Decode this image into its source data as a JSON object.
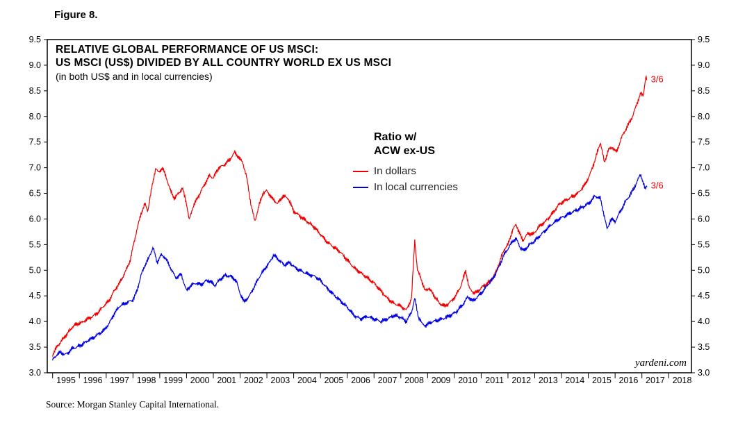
{
  "figure_label": "Figure 8.",
  "source_note": "Source: Morgan Stanley Capital International.",
  "watermark": "yardeni.com",
  "chart_data": {
    "type": "line",
    "title_line1": "RELATIVE GLOBAL PERFORMANCE OF US MSCI:",
    "title_line2": "US MSCI (US$) DIVIDED BY ALL COUNTRY WORLD EX US MSCI",
    "subtitle": "(in both US$ and in local currencies)",
    "legend_title_line1": "Ratio w/",
    "legend_title_line2": "ACW ex-US",
    "last_point_label": "3/6",
    "x_range": [
      1994.8,
      2018.85
    ],
    "y_range": [
      3.0,
      9.5
    ],
    "y_ticks": [
      3.0,
      3.5,
      4.0,
      4.5,
      5.0,
      5.5,
      6.0,
      6.5,
      7.0,
      7.5,
      8.0,
      8.5,
      9.0,
      9.5
    ],
    "x_tick_years": [
      1995,
      1996,
      1997,
      1998,
      1999,
      2000,
      2001,
      2002,
      2003,
      2004,
      2005,
      2006,
      2007,
      2008,
      2009,
      2010,
      2011,
      2012,
      2013,
      2014,
      2015,
      2016,
      2017,
      2018
    ],
    "grid": false,
    "legend_position": "inside-center",
    "jitter": 0.05,
    "colors": {
      "dollars": "#ee0000",
      "local": "#0000dd",
      "frame": "#000000",
      "annotation": "#ee0000"
    },
    "series": [
      {
        "name": "In dollars",
        "color_key": "dollars",
        "points": [
          [
            1995.0,
            3.35
          ],
          [
            1995.15,
            3.5
          ],
          [
            1995.3,
            3.6
          ],
          [
            1995.45,
            3.7
          ],
          [
            1995.6,
            3.8
          ],
          [
            1995.75,
            3.9
          ],
          [
            1995.9,
            3.95
          ],
          [
            1996.1,
            3.98
          ],
          [
            1996.3,
            4.05
          ],
          [
            1996.5,
            4.1
          ],
          [
            1996.7,
            4.18
          ],
          [
            1996.9,
            4.3
          ],
          [
            1997.1,
            4.4
          ],
          [
            1997.3,
            4.6
          ],
          [
            1997.5,
            4.75
          ],
          [
            1997.7,
            4.95
          ],
          [
            1997.9,
            5.2
          ],
          [
            1998.0,
            5.45
          ],
          [
            1998.15,
            5.8
          ],
          [
            1998.3,
            6.1
          ],
          [
            1998.45,
            6.3
          ],
          [
            1998.55,
            6.15
          ],
          [
            1998.7,
            6.6
          ],
          [
            1998.85,
            7.0
          ],
          [
            1998.95,
            6.9
          ],
          [
            1999.1,
            7.0
          ],
          [
            1999.25,
            6.8
          ],
          [
            1999.4,
            6.55
          ],
          [
            1999.55,
            6.4
          ],
          [
            1999.7,
            6.5
          ],
          [
            1999.85,
            6.6
          ],
          [
            2000.0,
            6.3
          ],
          [
            2000.1,
            5.98
          ],
          [
            2000.25,
            6.25
          ],
          [
            2000.4,
            6.4
          ],
          [
            2000.55,
            6.55
          ],
          [
            2000.7,
            6.7
          ],
          [
            2000.85,
            6.85
          ],
          [
            2001.0,
            6.8
          ],
          [
            2001.2,
            7.0
          ],
          [
            2001.4,
            7.05
          ],
          [
            2001.6,
            7.15
          ],
          [
            2001.8,
            7.3
          ],
          [
            2001.95,
            7.2
          ],
          [
            2002.1,
            7.1
          ],
          [
            2002.25,
            6.8
          ],
          [
            2002.4,
            6.3
          ],
          [
            2002.55,
            5.95
          ],
          [
            2002.7,
            6.25
          ],
          [
            2002.85,
            6.5
          ],
          [
            2003.0,
            6.55
          ],
          [
            2003.2,
            6.4
          ],
          [
            2003.4,
            6.3
          ],
          [
            2003.6,
            6.45
          ],
          [
            2003.8,
            6.4
          ],
          [
            2004.0,
            6.15
          ],
          [
            2004.25,
            6.05
          ],
          [
            2004.5,
            5.95
          ],
          [
            2004.75,
            5.85
          ],
          [
            2005.0,
            5.7
          ],
          [
            2005.25,
            5.55
          ],
          [
            2005.5,
            5.45
          ],
          [
            2005.75,
            5.35
          ],
          [
            2006.0,
            5.2
          ],
          [
            2006.25,
            5.05
          ],
          [
            2006.5,
            4.95
          ],
          [
            2006.75,
            4.85
          ],
          [
            2007.0,
            4.75
          ],
          [
            2007.25,
            4.6
          ],
          [
            2007.5,
            4.45
          ],
          [
            2007.75,
            4.35
          ],
          [
            2008.0,
            4.3
          ],
          [
            2008.2,
            4.22
          ],
          [
            2008.4,
            4.45
          ],
          [
            2008.52,
            5.6
          ],
          [
            2008.62,
            5.0
          ],
          [
            2008.75,
            4.85
          ],
          [
            2008.9,
            4.6
          ],
          [
            2009.05,
            4.65
          ],
          [
            2009.25,
            4.5
          ],
          [
            2009.45,
            4.35
          ],
          [
            2009.65,
            4.3
          ],
          [
            2009.85,
            4.38
          ],
          [
            2010.05,
            4.5
          ],
          [
            2010.25,
            4.7
          ],
          [
            2010.42,
            5.0
          ],
          [
            2010.55,
            4.65
          ],
          [
            2010.75,
            4.55
          ],
          [
            2010.9,
            4.6
          ],
          [
            2011.05,
            4.68
          ],
          [
            2011.25,
            4.75
          ],
          [
            2011.45,
            4.85
          ],
          [
            2011.65,
            5.1
          ],
          [
            2011.85,
            5.4
          ],
          [
            2012.0,
            5.5
          ],
          [
            2012.15,
            5.75
          ],
          [
            2012.3,
            5.9
          ],
          [
            2012.45,
            5.7
          ],
          [
            2012.55,
            5.58
          ],
          [
            2012.75,
            5.72
          ],
          [
            2012.95,
            5.7
          ],
          [
            2013.15,
            5.85
          ],
          [
            2013.4,
            5.95
          ],
          [
            2013.65,
            6.1
          ],
          [
            2013.9,
            6.28
          ],
          [
            2014.1,
            6.35
          ],
          [
            2014.35,
            6.42
          ],
          [
            2014.6,
            6.5
          ],
          [
            2014.85,
            6.65
          ],
          [
            2015.05,
            6.85
          ],
          [
            2015.25,
            7.15
          ],
          [
            2015.45,
            7.5
          ],
          [
            2015.6,
            7.1
          ],
          [
            2015.75,
            7.35
          ],
          [
            2015.9,
            7.4
          ],
          [
            2016.05,
            7.3
          ],
          [
            2016.25,
            7.6
          ],
          [
            2016.45,
            7.8
          ],
          [
            2016.65,
            8.0
          ],
          [
            2016.85,
            8.3
          ],
          [
            2016.95,
            8.45
          ],
          [
            2017.05,
            8.4
          ],
          [
            2017.1,
            8.6
          ],
          [
            2017.15,
            8.8
          ],
          [
            2017.18,
            8.72
          ]
        ]
      },
      {
        "name": "In local currencies",
        "color_key": "local",
        "points": [
          [
            1995.0,
            3.25
          ],
          [
            1995.15,
            3.35
          ],
          [
            1995.3,
            3.4
          ],
          [
            1995.45,
            3.35
          ],
          [
            1995.6,
            3.4
          ],
          [
            1995.75,
            3.48
          ],
          [
            1995.9,
            3.5
          ],
          [
            1996.1,
            3.55
          ],
          [
            1996.3,
            3.62
          ],
          [
            1996.5,
            3.68
          ],
          [
            1996.7,
            3.75
          ],
          [
            1996.9,
            3.82
          ],
          [
            1997.1,
            3.95
          ],
          [
            1997.3,
            4.15
          ],
          [
            1997.5,
            4.3
          ],
          [
            1997.7,
            4.35
          ],
          [
            1997.9,
            4.4
          ],
          [
            1998.0,
            4.42
          ],
          [
            1998.15,
            4.6
          ],
          [
            1998.3,
            4.9
          ],
          [
            1998.45,
            5.1
          ],
          [
            1998.6,
            5.25
          ],
          [
            1998.75,
            5.45
          ],
          [
            1998.9,
            5.15
          ],
          [
            1999.05,
            5.3
          ],
          [
            1999.2,
            5.25
          ],
          [
            1999.4,
            5.05
          ],
          [
            1999.6,
            4.85
          ],
          [
            1999.8,
            4.92
          ],
          [
            2000.0,
            4.6
          ],
          [
            2000.15,
            4.7
          ],
          [
            2000.35,
            4.75
          ],
          [
            2000.55,
            4.72
          ],
          [
            2000.75,
            4.8
          ],
          [
            2000.9,
            4.78
          ],
          [
            2001.05,
            4.7
          ],
          [
            2001.25,
            4.82
          ],
          [
            2001.45,
            4.9
          ],
          [
            2001.65,
            4.88
          ],
          [
            2001.85,
            4.8
          ],
          [
            2002.0,
            4.55
          ],
          [
            2002.15,
            4.38
          ],
          [
            2002.35,
            4.5
          ],
          [
            2002.55,
            4.7
          ],
          [
            2002.75,
            4.9
          ],
          [
            2002.95,
            5.05
          ],
          [
            2003.1,
            5.15
          ],
          [
            2003.25,
            5.3
          ],
          [
            2003.45,
            5.2
          ],
          [
            2003.65,
            5.1
          ],
          [
            2003.85,
            5.15
          ],
          [
            2004.05,
            5.05
          ],
          [
            2004.3,
            4.98
          ],
          [
            2004.55,
            4.92
          ],
          [
            2004.8,
            4.88
          ],
          [
            2005.0,
            4.8
          ],
          [
            2005.25,
            4.65
          ],
          [
            2005.5,
            4.52
          ],
          [
            2005.75,
            4.4
          ],
          [
            2006.0,
            4.28
          ],
          [
            2006.25,
            4.12
          ],
          [
            2006.5,
            4.05
          ],
          [
            2006.75,
            4.1
          ],
          [
            2007.0,
            4.05
          ],
          [
            2007.25,
            4.0
          ],
          [
            2007.5,
            4.05
          ],
          [
            2007.75,
            4.12
          ],
          [
            2008.0,
            4.08
          ],
          [
            2008.2,
            4.0
          ],
          [
            2008.4,
            4.18
          ],
          [
            2008.52,
            4.45
          ],
          [
            2008.65,
            4.1
          ],
          [
            2008.8,
            3.95
          ],
          [
            2008.95,
            3.92
          ],
          [
            2009.1,
            3.98
          ],
          [
            2009.35,
            4.02
          ],
          [
            2009.6,
            4.06
          ],
          [
            2009.85,
            4.12
          ],
          [
            2010.05,
            4.18
          ],
          [
            2010.3,
            4.32
          ],
          [
            2010.5,
            4.48
          ],
          [
            2010.7,
            4.4
          ],
          [
            2010.9,
            4.5
          ],
          [
            2011.05,
            4.58
          ],
          [
            2011.25,
            4.72
          ],
          [
            2011.45,
            4.85
          ],
          [
            2011.65,
            5.05
          ],
          [
            2011.85,
            5.3
          ],
          [
            2012.0,
            5.42
          ],
          [
            2012.15,
            5.55
          ],
          [
            2012.3,
            5.62
          ],
          [
            2012.45,
            5.45
          ],
          [
            2012.6,
            5.38
          ],
          [
            2012.8,
            5.5
          ],
          [
            2012.95,
            5.55
          ],
          [
            2013.15,
            5.65
          ],
          [
            2013.4,
            5.78
          ],
          [
            2013.65,
            5.9
          ],
          [
            2013.9,
            6.0
          ],
          [
            2014.1,
            6.05
          ],
          [
            2014.35,
            6.12
          ],
          [
            2014.6,
            6.18
          ],
          [
            2014.85,
            6.25
          ],
          [
            2015.05,
            6.32
          ],
          [
            2015.25,
            6.45
          ],
          [
            2015.45,
            6.4
          ],
          [
            2015.6,
            6.05
          ],
          [
            2015.7,
            5.8
          ],
          [
            2015.85,
            6.0
          ],
          [
            2016.0,
            5.95
          ],
          [
            2016.2,
            6.15
          ],
          [
            2016.4,
            6.35
          ],
          [
            2016.6,
            6.5
          ],
          [
            2016.8,
            6.7
          ],
          [
            2016.95,
            6.88
          ],
          [
            2017.05,
            6.7
          ],
          [
            2017.12,
            6.58
          ],
          [
            2017.18,
            6.65
          ]
        ]
      }
    ]
  }
}
